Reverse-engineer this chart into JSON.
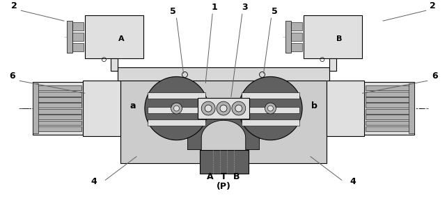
{
  "bg_color": "#ffffff",
  "lc": "#000000",
  "gray_light": "#e0e0e0",
  "gray_mid": "#b0b0b0",
  "gray_dark": "#606060",
  "gray_body": "#cccccc",
  "gray_valve": "#b8b8b8",
  "gray_inner": "#888888",
  "gray_port": "#d8d8d8",
  "labels": {
    "2l": "2",
    "2r": "2",
    "6l": "6",
    "6r": "6",
    "4l": "4",
    "4r": "4",
    "a": "a",
    "b": "b",
    "A_top": "A",
    "B_top": "B",
    "num1": "1",
    "num3": "3",
    "5l": "5",
    "5r": "5",
    "T": "T",
    "P": "(P)",
    "A_bot": "A",
    "B_bot": "B"
  },
  "fig_width": 6.42,
  "fig_height": 2.88,
  "dpi": 100
}
